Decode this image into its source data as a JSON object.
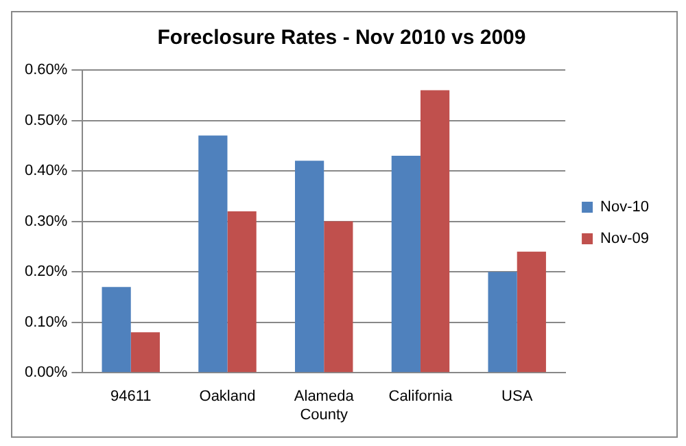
{
  "chart_data": {
    "type": "bar",
    "title": "Foreclosure Rates - Nov 2010 vs 2009",
    "categories": [
      "94611",
      "Oakland",
      "Alameda County",
      "California",
      "USA"
    ],
    "series": [
      {
        "name": "Nov-10",
        "color": "#4f81bd",
        "values": [
          0.17,
          0.47,
          0.42,
          0.43,
          0.2
        ]
      },
      {
        "name": "Nov-09",
        "color": "#c0504d",
        "values": [
          0.08,
          0.32,
          0.3,
          0.56,
          0.24
        ]
      }
    ],
    "ylim": [
      0,
      0.6
    ],
    "yticks": [
      {
        "value": 0,
        "label": "0.00%"
      },
      {
        "value": 0.1,
        "label": "0.10%"
      },
      {
        "value": 0.2,
        "label": "0.20%"
      },
      {
        "value": 0.3,
        "label": "0.30%"
      },
      {
        "value": 0.4,
        "label": "0.40%"
      },
      {
        "value": 0.5,
        "label": "0.50%"
      },
      {
        "value": 0.6,
        "label": "0.60%"
      }
    ],
    "grid": "y",
    "legend": "right"
  }
}
